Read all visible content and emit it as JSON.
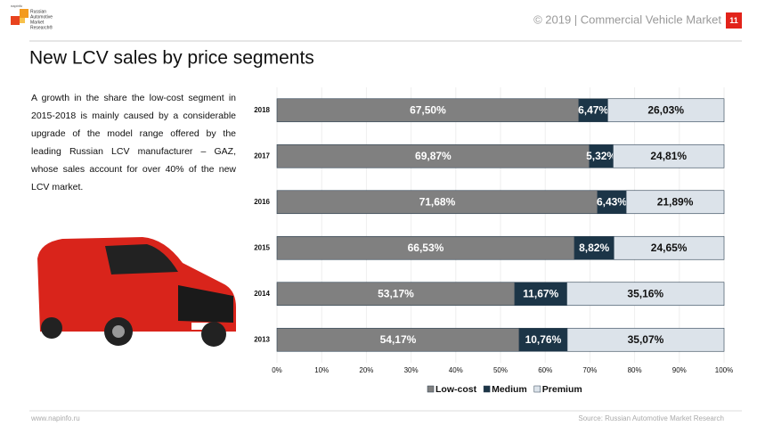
{
  "header": {
    "logo_small": "napinfo",
    "logo_lines": [
      "Russian",
      "Automotive",
      "Market",
      "Research®"
    ],
    "title_right": "© 2019  | Commercial Vehicle Market",
    "page_number": "11"
  },
  "slide_title": "New LCV sales by price segments",
  "paragraph": "A growth in the share the low-cost segment in 2015-2018 is mainly caused by a considerable upgrade of the model range offered by the leading Russian LCV manufacturer – GAZ, whose  sales account for over 40% of the new LCV market.",
  "footer": {
    "left": "www.napinfo.ru",
    "right": "Source: Russian Automotive Market Research"
  },
  "chart_data": {
    "type": "stacked_bar_horizontal",
    "categories": [
      "2018",
      "2017",
      "2016",
      "2015",
      "2014",
      "2013"
    ],
    "series": [
      {
        "name": "Low-cost",
        "color": "#808080",
        "values": [
          67.5,
          69.87,
          71.68,
          66.53,
          53.17,
          54.17
        ],
        "value_labels": [
          "67,50%",
          "69,87%",
          "71,68%",
          "66,53%",
          "53,17%",
          "54,17%"
        ]
      },
      {
        "name": "Medium",
        "color": "#1c3547",
        "values": [
          6.47,
          5.32,
          6.43,
          8.82,
          11.67,
          10.76
        ],
        "value_labels": [
          "6,47%",
          "5,32%",
          "6,43%",
          "8,82%",
          "11,67%",
          "10,76%"
        ]
      },
      {
        "name": "Premium",
        "color": "#dce3ea",
        "values": [
          26.03,
          24.81,
          21.89,
          24.65,
          35.16,
          35.07
        ],
        "value_labels": [
          "26,03%",
          "24,81%",
          "21,89%",
          "24,65%",
          "35,16%",
          "35,07%"
        ]
      }
    ],
    "xlim": [
      0,
      100
    ],
    "xticks": [
      {
        "value": 0,
        "label": "0%"
      },
      {
        "value": 10,
        "label": "10%"
      },
      {
        "value": 20,
        "label": "20%"
      },
      {
        "value": 30,
        "label": "30%"
      },
      {
        "value": 40,
        "label": "40%"
      },
      {
        "value": 50,
        "label": "50%"
      },
      {
        "value": 60,
        "label": "60%"
      },
      {
        "value": 70,
        "label": "70%"
      },
      {
        "value": 80,
        "label": "80%"
      },
      {
        "value": 90,
        "label": "90%"
      },
      {
        "value": 100,
        "label": "100%"
      }
    ],
    "grid": true,
    "legend": "bottom"
  }
}
